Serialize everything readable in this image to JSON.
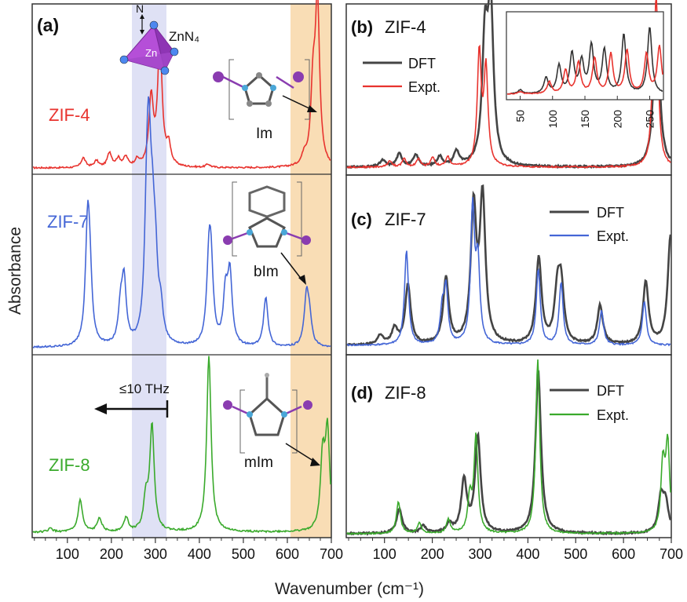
{
  "figure": {
    "ylabel": "Absorbance",
    "xlabel": "Wavenumber (cm⁻¹)"
  },
  "panel_a": {
    "label": "(a)",
    "xlim": [
      20,
      700
    ],
    "xticks": [
      100,
      200,
      300,
      400,
      500,
      600,
      700
    ],
    "colors": {
      "zif4": "#e8332e",
      "zif7": "#4466d6",
      "zif8": "#3aaa2c",
      "band_blue": "#dfe1f5",
      "band_orange": "#f9ddb5"
    },
    "band_thz": [
      248,
      328
    ],
    "band_linker": [
      605,
      700
    ],
    "labels": {
      "zif4": "ZIF-4",
      "zif7": "ZIF-7",
      "zif8": "ZIF-8",
      "zn": "Zn",
      "n": "N",
      "znn4": "ZnN₄",
      "im": "Im",
      "bim": "bIm",
      "mim": "mIm",
      "thz": "≤10 THz",
      "zn_atom": "Zn"
    }
  },
  "panel_b": {
    "label": "(b)",
    "title": "ZIF-4",
    "legend": [
      "DFT",
      "Expt."
    ],
    "inset_xticks": [
      50,
      100,
      150,
      200,
      250
    ]
  },
  "panel_c": {
    "label": "(c)",
    "title": "ZIF-7",
    "legend": [
      "DFT",
      "Expt."
    ]
  },
  "panel_d": {
    "label": "(d)",
    "title": "ZIF-8",
    "legend": [
      "DFT",
      "Expt."
    ],
    "xticks": [
      100,
      200,
      300,
      400,
      500,
      600,
      700
    ]
  },
  "chart_data": [
    {
      "panel": "a",
      "type": "line",
      "xlabel": "Wavenumber (cm⁻¹)",
      "ylabel": "Absorbance",
      "xlim": [
        20,
        700
      ],
      "series": [
        {
          "name": "ZIF-4",
          "color": "#e8332e",
          "peaks": [
            [
              135,
              0.06
            ],
            [
              165,
              0.04
            ],
            [
              195,
              0.09
            ],
            [
              215,
              0.05
            ],
            [
              232,
              0.06
            ],
            [
              258,
              0.04
            ],
            [
              290,
              0.42
            ],
            [
              310,
              0.78
            ],
            [
              330,
              0.12
            ],
            [
              420,
              0.02
            ],
            [
              640,
              0.06
            ],
            [
              660,
              0.45
            ],
            [
              670,
              1.0
            ]
          ]
        },
        {
          "name": "ZIF-7",
          "color": "#4466d6",
          "peaks": [
            [
              145,
              0.7
            ],
            [
              150,
              0.3
            ],
            [
              220,
              0.2
            ],
            [
              228,
              0.38
            ],
            [
              280,
              0.6
            ],
            [
              285,
              0.92
            ],
            [
              293,
              0.5
            ],
            [
              300,
              0.38
            ],
            [
              312,
              0.18
            ],
            [
              422,
              0.45
            ],
            [
              427,
              0.4
            ],
            [
              460,
              0.3
            ],
            [
              470,
              0.42
            ],
            [
              552,
              0.3
            ],
            [
              645,
              0.3
            ],
            [
              652,
              0.15
            ]
          ]
        },
        {
          "name": "ZIF-8",
          "color": "#3aaa2c",
          "peaks": [
            [
              60,
              0.02
            ],
            [
              128,
              0.18
            ],
            [
              172,
              0.08
            ],
            [
              233,
              0.08
            ],
            [
              278,
              0.18
            ],
            [
              292,
              0.6
            ],
            [
              422,
              1.0
            ],
            [
              682,
              0.4
            ],
            [
              693,
              0.55
            ]
          ]
        }
      ]
    },
    {
      "panel": "b",
      "type": "line",
      "title": "ZIF-4",
      "xlim": [
        20,
        700
      ],
      "series": [
        {
          "name": "DFT",
          "color": "#444444",
          "peaks": [
            [
              95,
              0.04
            ],
            [
              130,
              0.08
            ],
            [
              165,
              0.07
            ],
            [
              215,
              0.06
            ],
            [
              250,
              0.09
            ],
            [
              310,
              0.75
            ],
            [
              322,
              0.95
            ],
            [
              668,
              0.3
            ],
            [
              672,
              0.68
            ]
          ]
        },
        {
          "name": "Expt.",
          "color": "#e8332e",
          "peaks": [
            [
              110,
              0.04
            ],
            [
              140,
              0.05
            ],
            [
              170,
              0.05
            ],
            [
              200,
              0.06
            ],
            [
              232,
              0.06
            ],
            [
              298,
              0.7
            ],
            [
              312,
              0.6
            ],
            [
              662,
              0.25
            ],
            [
              670,
              1.0
            ]
          ]
        }
      ],
      "inset": {
        "xlim": [
          30,
          270
        ],
        "xticks": [
          50,
          100,
          150,
          200,
          250
        ],
        "series": [
          {
            "name": "DFT",
            "peaks": [
              [
                50,
                0.05
              ],
              [
                90,
                0.2
              ],
              [
                110,
                0.35
              ],
              [
                130,
                0.5
              ],
              [
                145,
                0.4
              ],
              [
                160,
                0.6
              ],
              [
                180,
                0.55
              ],
              [
                210,
                0.75
              ],
              [
                250,
                0.85
              ]
            ]
          },
          {
            "name": "Expt.",
            "peaks": [
              [
                50,
                0.03
              ],
              [
                95,
                0.15
              ],
              [
                120,
                0.3
              ],
              [
                140,
                0.4
              ],
              [
                165,
                0.45
              ],
              [
                190,
                0.5
              ],
              [
                215,
                0.55
              ],
              [
                245,
                0.5
              ],
              [
                265,
                0.6
              ]
            ]
          }
        ]
      }
    },
    {
      "panel": "c",
      "type": "line",
      "title": "ZIF-7",
      "xlim": [
        20,
        700
      ],
      "series": [
        {
          "name": "DFT",
          "color": "#444444",
          "peaks": [
            [
              90,
              0.06
            ],
            [
              120,
              0.1
            ],
            [
              148,
              0.38
            ],
            [
              228,
              0.42
            ],
            [
              286,
              0.85
            ],
            [
              305,
              0.92
            ],
            [
              423,
              0.55
            ],
            [
              462,
              0.3
            ],
            [
              470,
              0.35
            ],
            [
              552,
              0.25
            ],
            [
              648,
              0.4
            ],
            [
              700,
              0.7
            ]
          ]
        },
        {
          "name": "Expt.",
          "color": "#4466d6",
          "peaks": [
            [
              145,
              0.6
            ],
            [
              220,
              0.2
            ],
            [
              228,
              0.35
            ],
            [
              284,
              0.85
            ],
            [
              295,
              0.5
            ],
            [
              422,
              0.48
            ],
            [
              470,
              0.4
            ],
            [
              555,
              0.22
            ],
            [
              645,
              0.28
            ]
          ]
        }
      ]
    },
    {
      "panel": "d",
      "type": "line",
      "title": "ZIF-8",
      "xlabel": "Wavenumber (cm⁻¹)",
      "xlim": [
        20,
        700
      ],
      "series": [
        {
          "name": "DFT",
          "color": "#444444",
          "peaks": [
            [
              130,
              0.14
            ],
            [
              180,
              0.04
            ],
            [
              235,
              0.05
            ],
            [
              266,
              0.3
            ],
            [
              295,
              0.55
            ],
            [
              422,
              0.92
            ],
            [
              680,
              0.2
            ],
            [
              690,
              0.16
            ]
          ]
        },
        {
          "name": "Expt.",
          "color": "#3aaa2c",
          "peaks": [
            [
              128,
              0.18
            ],
            [
              172,
              0.06
            ],
            [
              233,
              0.08
            ],
            [
              278,
              0.2
            ],
            [
              291,
              0.55
            ],
            [
              421,
              1.0
            ],
            [
              684,
              0.38
            ],
            [
              694,
              0.5
            ]
          ]
        }
      ]
    }
  ]
}
